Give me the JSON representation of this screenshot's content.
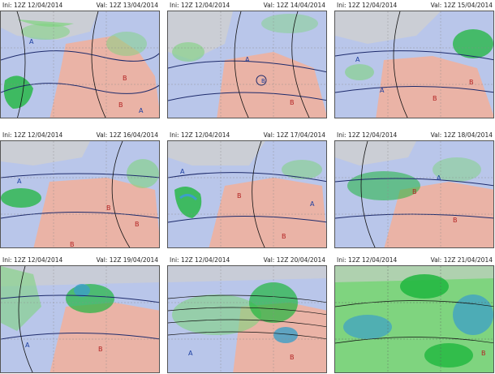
{
  "panels": [
    {
      "ini": "Ini: 12Z  12/04/2014",
      "val": "Val: 12Z  13/04/2014",
      "labels": [
        "A",
        "B",
        "B",
        "A"
      ]
    },
    {
      "ini": "Ini: 12Z  12/04/2014",
      "val": "Val: 12Z  14/04/2014",
      "labels": [
        "B",
        "A",
        "B"
      ]
    },
    {
      "ini": "Ini: 12Z  12/04/2014",
      "val": "Val: 12Z  15/04/2014",
      "labels": [
        "A",
        "A",
        "B",
        "B"
      ]
    },
    {
      "ini": "Ini: 12Z  12/04/2014",
      "val": "Val: 12Z  16/04/2014",
      "labels": [
        "A",
        "B",
        "B",
        "B"
      ]
    },
    {
      "ini": "Ini: 12Z  12/04/2014",
      "val": "Val: 12Z  17/04/2014",
      "labels": [
        "A",
        "B",
        "B",
        "A"
      ]
    },
    {
      "ini": "Ini: 12Z  12/04/2014",
      "val": "Val: 12Z  18/04/2014",
      "labels": [
        "B",
        "A",
        "B"
      ]
    },
    {
      "ini": "Ini: 12Z  12/04/2014",
      "val": "Val: 12Z  19/04/2014",
      "labels": [
        "B",
        "A"
      ]
    },
    {
      "ini": "Ini: 12Z  12/04/2014",
      "val": "Val: 12Z  20/04/2014",
      "labels": [
        "B",
        "A"
      ]
    },
    {
      "ini": "Ini: 12Z  12/04/2014",
      "val": "Val: 12Z  21/04/2014",
      "labels": [
        "B"
      ]
    }
  ],
  "legend_colors": {
    "sea": "#b9c6ea",
    "land_pressure": "#eab3a6",
    "cloud": "#cfcfcf",
    "precip_light": "#7fd47f",
    "precip_mid": "#1fb63e",
    "precip_heavy": "#3c9fc8",
    "isobar": "#1d2a6b",
    "geopotential": "#111111"
  }
}
